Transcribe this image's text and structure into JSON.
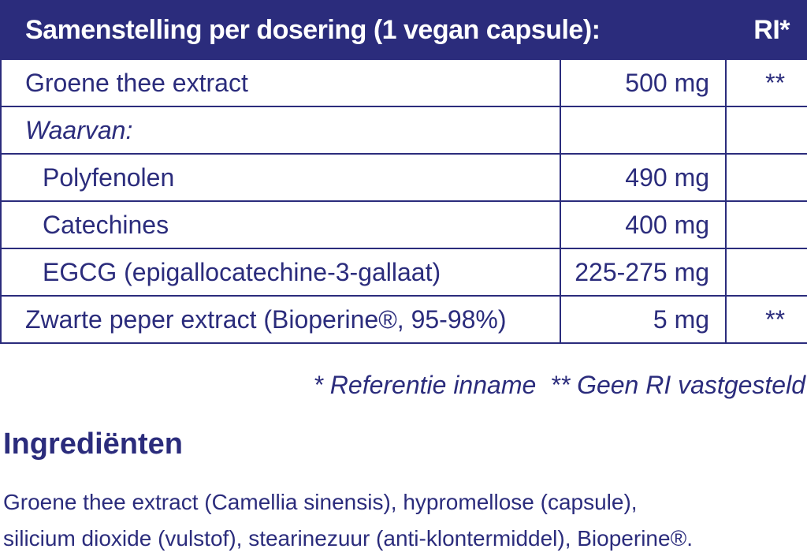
{
  "table": {
    "header": {
      "title": "Samenstelling per dosering (1 vegan capsule):",
      "ri": "RI*"
    },
    "rows": [
      {
        "name": "Groene thee extract",
        "amount": "500 mg",
        "ri": "**"
      },
      {
        "name": "Waarvan:",
        "amount": "",
        "ri": ""
      },
      {
        "name": "Polyfenolen",
        "amount": "490 mg",
        "ri": ""
      },
      {
        "name": "Catechines",
        "amount": "400 mg",
        "ri": ""
      },
      {
        "name": "EGCG (epigallocatechine-3-gallaat)",
        "amount": "225-275 mg",
        "ri": ""
      },
      {
        "name": "Zwarte peper extract (Bioperine®, 95-98%)",
        "amount": "5 mg",
        "ri": "**"
      }
    ]
  },
  "footnotes": {
    "ri": "* Referentie inname",
    "no_ri": "** Geen RI vastgesteld"
  },
  "ingredients": {
    "heading": "Ingrediënten",
    "line_1": "Groene thee extract (Camellia sinensis), hypromellose (capsule),",
    "line_2": "silicium dioxide (vulstof), stearinezuur (anti-klontermiddel), Bioperine®."
  },
  "colors": {
    "brand_navy": "#2b2c7c",
    "background": "#ffffff"
  }
}
